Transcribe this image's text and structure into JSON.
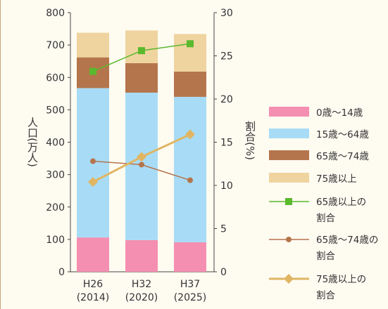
{
  "chart_data": {
    "type": "bar",
    "stacked": true,
    "categories": [
      "H26\n(2014)",
      "H32\n(2020)",
      "H37\n(2025)"
    ],
    "category_lines": [
      [
        "H26",
        "(2014)"
      ],
      [
        "H32",
        "(2020)"
      ],
      [
        "H37",
        "(2025)"
      ]
    ],
    "ylabel_left": "人口(万人)",
    "ylabel_right": "割合(%)",
    "ylim_left": [
      0,
      800
    ],
    "ylim_right": [
      0,
      30
    ],
    "yticks_left": [
      0,
      100,
      200,
      300,
      400,
      500,
      600,
      700,
      800
    ],
    "yticks_right": [
      0,
      5,
      10,
      15,
      20,
      25,
      30
    ],
    "grid": false,
    "legend_placement": "right",
    "bar_series": [
      {
        "name": "0歳～14歳",
        "color": "#f48fb1",
        "values": [
          106,
          98,
          91
        ]
      },
      {
        "name": "15歳～64歳",
        "color": "#a8dcf6",
        "values": [
          461,
          455,
          449
        ]
      },
      {
        "name": "65歳～74歳",
        "color": "#b5754c",
        "values": [
          95,
          91,
          78
        ]
      },
      {
        "name": "75歳以上",
        "color": "#efd49f",
        "values": [
          76,
          101,
          116
        ]
      }
    ],
    "line_series": [
      {
        "name": "65歳以上の割合",
        "legend_lines": [
          "65歳以上の",
          "割合"
        ],
        "color": "#5ab92d",
        "marker": "square",
        "values": [
          23.2,
          25.6,
          26.4
        ]
      },
      {
        "name": "65歳～74歳の割合",
        "legend_lines": [
          "65歳～74歳の",
          "割合"
        ],
        "color": "#b5754c",
        "marker": "circle",
        "values": [
          12.8,
          12.4,
          10.6
        ]
      },
      {
        "name": "75歳以上の割合",
        "legend_lines": [
          "75歳以上の",
          "割合"
        ],
        "color": "#e0b663",
        "marker": "diamond",
        "values": [
          10.4,
          13.3,
          15.9
        ]
      }
    ]
  }
}
